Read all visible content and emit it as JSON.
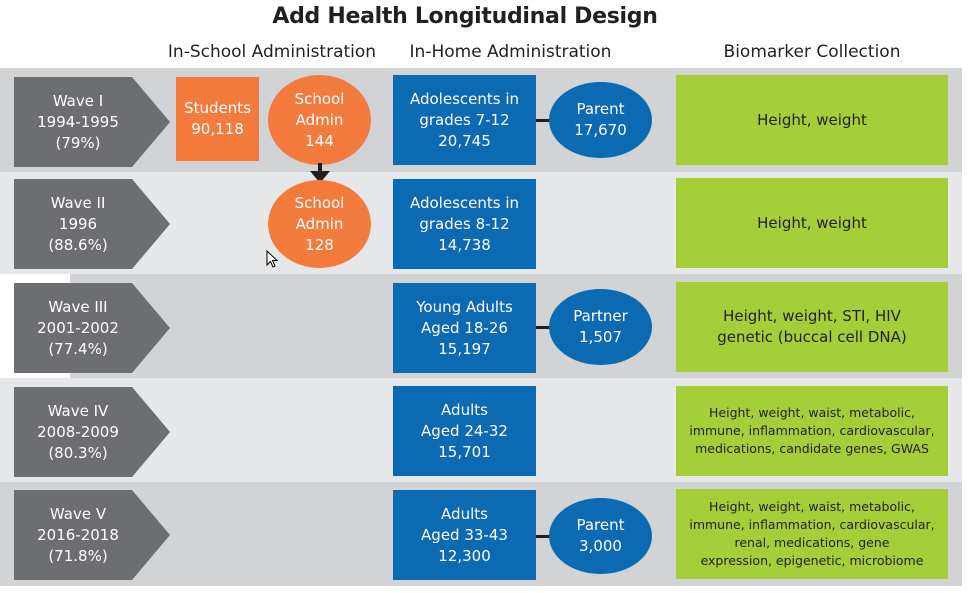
{
  "title": "Add Health Longitudinal Design",
  "columns": {
    "in_school": "In-School Administration",
    "in_home": "In-Home Administration",
    "biomarker": "Biomarker Collection"
  },
  "waves": [
    {
      "wave": [
        "Wave I",
        "1994-1995",
        "(79%)"
      ],
      "students": [
        "Students",
        "90,118"
      ],
      "school_admin": [
        "School",
        "Admin",
        "144"
      ],
      "in_home": [
        "Adolescents in",
        "grades 7-12",
        "20,745"
      ],
      "extra": [
        "Parent",
        "17,670"
      ],
      "biomarker": [
        "Height, weight"
      ]
    },
    {
      "wave": [
        "Wave II",
        "1996",
        "(88.6%)"
      ],
      "school_admin": [
        "School",
        "Admin",
        "128"
      ],
      "in_home": [
        "Adolescents in",
        "grades 8-12",
        "14,738"
      ],
      "biomarker": [
        "Height, weight"
      ]
    },
    {
      "wave": [
        "Wave III",
        "2001-2002",
        "(77.4%)"
      ],
      "in_home": [
        "Young Adults",
        "Aged 18-26",
        "15,197"
      ],
      "extra": [
        "Partner",
        "1,507"
      ],
      "biomarker": [
        "Height, weight, STI, HIV",
        "genetic (buccal cell DNA)"
      ]
    },
    {
      "wave": [
        "Wave IV",
        "2008-2009",
        "(80.3%)"
      ],
      "in_home": [
        "Adults",
        "Aged 24-32",
        "15,701"
      ],
      "biomarker": [
        "Height, weight, waist, metabolic,",
        "immune, inflammation, cardiovascular,",
        "medications, candidate genes, GWAS"
      ]
    },
    {
      "wave": [
        "Wave V",
        "2016-2018",
        "(71.8%)"
      ],
      "in_home": [
        "Adults",
        "Aged 33-43",
        "12,300"
      ],
      "extra": [
        "Parent",
        "3,000"
      ],
      "biomarker": [
        "Height, weight, waist, metabolic,",
        "immune, inflammation, cardiovascular,",
        "renal, medications, gene",
        "expression, epigenetic, microbiome"
      ]
    }
  ],
  "colors": {
    "arrow": "#6d6e71",
    "orange": "#f47b3e",
    "blue": "#0b6ab2",
    "green": "#a6ce39",
    "band_dark": "#d1d3d4",
    "band_light": "#e6e7e8"
  }
}
